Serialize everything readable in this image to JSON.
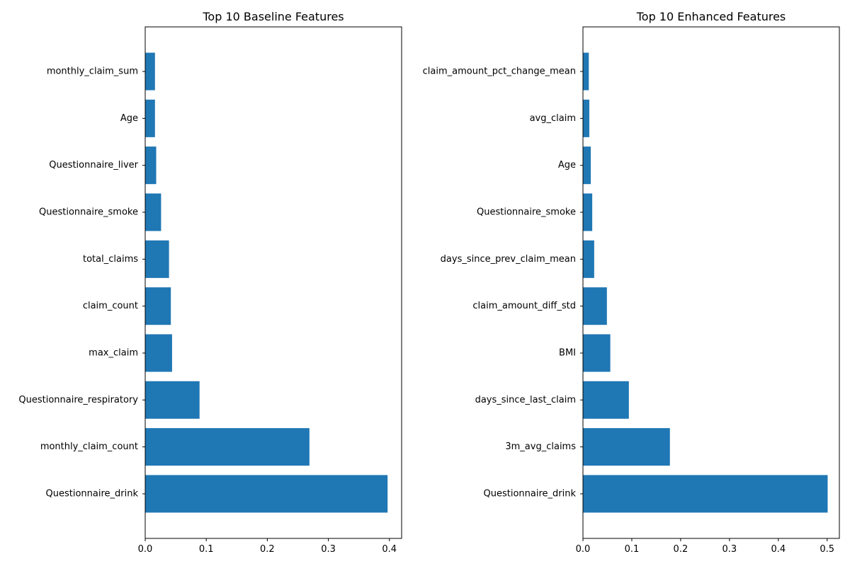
{
  "chart_data": [
    {
      "type": "bar",
      "orientation": "horizontal",
      "title": "Top 10 Baseline Features",
      "xlabel": "",
      "ylabel": "",
      "xlim": [
        0,
        0.42
      ],
      "xticks": [
        0.0,
        0.1,
        0.2,
        0.3,
        0.4
      ],
      "xtick_labels": [
        "0.0",
        "0.1",
        "0.2",
        "0.3",
        "0.4"
      ],
      "grid": false,
      "color": "#1f77b4",
      "categories": [
        "Questionnaire_drink",
        "monthly_claim_count",
        "Questionnaire_respiratory",
        "max_claim",
        "claim_count",
        "total_claims",
        "Questionnaire_smoke",
        "Questionnaire_liver",
        "Age",
        "monthly_claim_sum"
      ],
      "values": [
        0.397,
        0.269,
        0.089,
        0.044,
        0.042,
        0.039,
        0.026,
        0.018,
        0.016,
        0.016
      ]
    },
    {
      "type": "bar",
      "orientation": "horizontal",
      "title": "Top 10 Enhanced Features",
      "xlabel": "",
      "ylabel": "",
      "xlim": [
        0,
        0.525
      ],
      "xticks": [
        0.0,
        0.1,
        0.2,
        0.3,
        0.4,
        0.5
      ],
      "xtick_labels": [
        "0.0",
        "0.1",
        "0.2",
        "0.3",
        "0.4",
        "0.5"
      ],
      "grid": false,
      "color": "#1f77b4",
      "categories": [
        "Questionnaire_drink",
        "3m_avg_claims",
        "days_since_last_claim",
        "BMI",
        "claim_amount_diff_std",
        "days_since_prev_claim_mean",
        "Questionnaire_smoke",
        "Age",
        "avg_claim",
        "claim_amount_pct_change_mean"
      ],
      "values": [
        0.501,
        0.178,
        0.094,
        0.056,
        0.049,
        0.023,
        0.019,
        0.016,
        0.013,
        0.012
      ]
    }
  ]
}
